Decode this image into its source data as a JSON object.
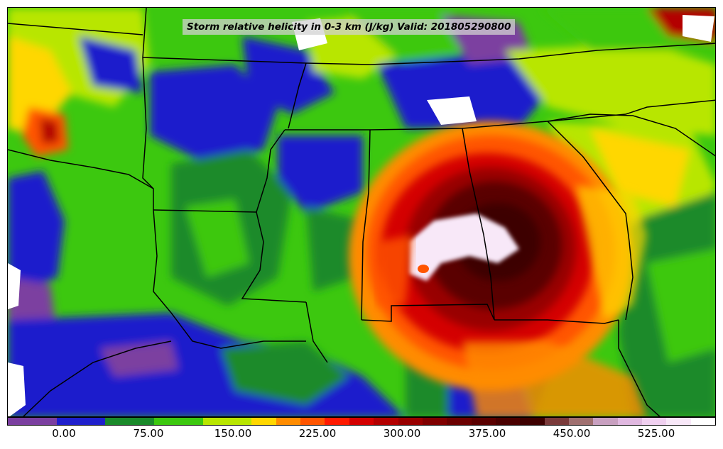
{
  "title": "Storm relative helicity in 0-3 km (J/kg) Valid: 201805290800",
  "colorbar": {
    "colors": [
      "#7b3fa0",
      "#7b3fa0",
      "#1f1fcc",
      "#1f1fcc",
      "#1a8a2a",
      "#1a8a2a",
      "#3cc80f",
      "#3cc80f",
      "#b8e600",
      "#b8e600",
      "#ffd700",
      "#ff8c00",
      "#ff5500",
      "#ff1a00",
      "#d40000",
      "#b30000",
      "#990000",
      "#800000",
      "#6b0000",
      "#5a0000",
      "#4a0000",
      "#3d0000",
      "#7a3a3a",
      "#a07070",
      "#c8a0c0",
      "#e0b8e0",
      "#f0d0f0",
      "#f8e8f8",
      "#ffffff"
    ],
    "tick_values": [
      "0.00",
      "75.00",
      "150.00",
      "225.00",
      "300.00",
      "375.00",
      "450.00",
      "525.00"
    ]
  }
}
